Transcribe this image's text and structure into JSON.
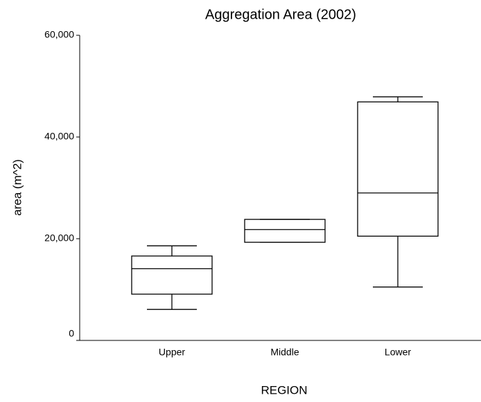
{
  "chart_data": {
    "type": "box",
    "title": "Aggregation Area (2002)",
    "xlabel": "REGION",
    "ylabel": "area (m^2)",
    "categories": [
      "Upper",
      "Middle",
      "Lower"
    ],
    "boxes": [
      {
        "whislo": 6100,
        "q1": 9100,
        "med": 14100,
        "q3": 16600,
        "whishi": 18600
      },
      {
        "whislo": 19300,
        "q1": 19300,
        "med": 21800,
        "q3": 23800,
        "whishi": 23800
      },
      {
        "whislo": 10500,
        "q1": 20500,
        "med": 29000,
        "q3": 46900,
        "whishi": 47900
      }
    ],
    "color": "#000000",
    "ylim": [
      0,
      60000
    ],
    "yticks": [
      0,
      {
        "value": 20000,
        "label": "20,000"
      },
      {
        "value": 40000,
        "label": "40,000"
      },
      {
        "value": 60000,
        "label": "60,000"
      }
    ]
  }
}
